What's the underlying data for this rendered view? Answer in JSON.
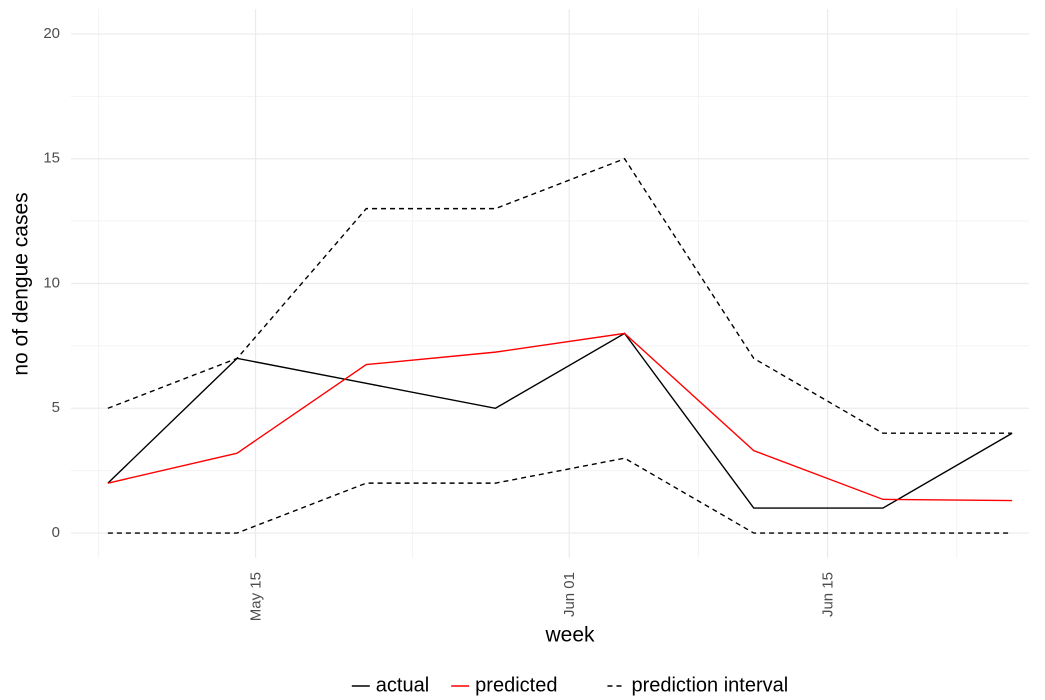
{
  "chart_data": {
    "type": "line",
    "x_label": "week",
    "y_label": "no of dengue cases",
    "x": [
      "May 07",
      "May 14",
      "May 21",
      "May 28",
      "Jun 04",
      "Jun 11",
      "Jun 18",
      "Jun 25"
    ],
    "xlim": [
      "May 05",
      "Jun 27"
    ],
    "xticks": [
      "May 15",
      "Jun 01",
      "Jun 15"
    ],
    "ylim": [
      -1,
      21
    ],
    "yticks": [
      0,
      5,
      10,
      15,
      20
    ],
    "grid": true,
    "legend": "bottom",
    "series": [
      {
        "name": "actual",
        "color": "#000000",
        "linetype": "solid",
        "values": [
          2,
          7,
          6,
          5,
          8,
          1,
          1,
          4
        ]
      },
      {
        "name": "predicted",
        "color": "#ff0000",
        "linetype": "solid",
        "values": [
          2.0,
          3.2,
          6.75,
          7.25,
          8.0,
          3.3,
          1.35,
          1.3
        ]
      },
      {
        "name": "prediction interval",
        "color": "#000000",
        "linetype": "dashed",
        "values": [
          5,
          7,
          13,
          13,
          15,
          7,
          4,
          4
        ]
      },
      {
        "name": "prediction interval",
        "color": "#000000",
        "linetype": "dashed",
        "values": [
          0,
          0,
          2,
          2,
          3,
          0,
          0,
          0
        ]
      }
    ]
  }
}
